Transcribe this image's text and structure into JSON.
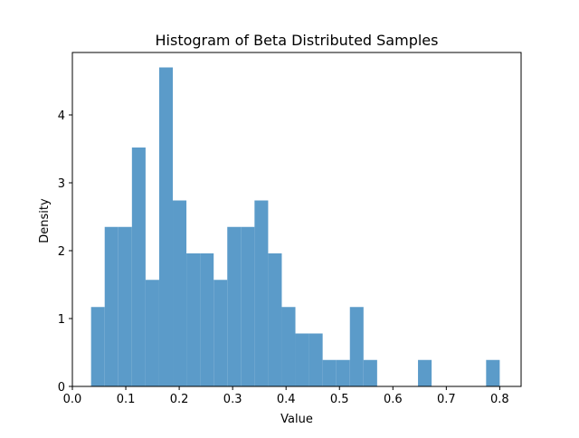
{
  "chart_data": {
    "type": "bar",
    "title": "Histogram of Beta Distributed Samples",
    "xlabel": "Value",
    "ylabel": "Density",
    "xlim": [
      0.0,
      0.84
    ],
    "ylim": [
      0.0,
      4.92
    ],
    "xticks": [
      0.0,
      0.1,
      0.2,
      0.3,
      0.4,
      0.5,
      0.6,
      0.7,
      0.8
    ],
    "xtick_labels": [
      "0.0",
      "0.1",
      "0.2",
      "0.3",
      "0.4",
      "0.5",
      "0.6",
      "0.7",
      "0.8"
    ],
    "yticks": [
      0,
      1,
      2,
      3,
      4
    ],
    "ytick_labels": [
      "0",
      "1",
      "2",
      "3",
      "4"
    ],
    "bin_edges": [
      0.035,
      0.0605,
      0.086,
      0.1115,
      0.137,
      0.1625,
      0.188,
      0.2135,
      0.239,
      0.2645,
      0.29,
      0.3155,
      0.341,
      0.3665,
      0.392,
      0.4175,
      0.443,
      0.4685,
      0.494,
      0.5195,
      0.545,
      0.5705,
      0.596,
      0.6215,
      0.647,
      0.6725,
      0.698,
      0.7235,
      0.749,
      0.7745,
      0.8
    ],
    "values": [
      1.17,
      2.35,
      2.35,
      3.52,
      1.57,
      4.7,
      2.74,
      1.96,
      1.96,
      1.57,
      2.35,
      2.35,
      2.74,
      1.96,
      1.17,
      0.78,
      0.78,
      0.39,
      0.39,
      1.17,
      0.39,
      0.0,
      0.0,
      0.0,
      0.39,
      0.0,
      0.0,
      0.0,
      0.0,
      0.39
    ],
    "bar_color": "#5b9bc9",
    "grid": false,
    "legend": "none"
  }
}
